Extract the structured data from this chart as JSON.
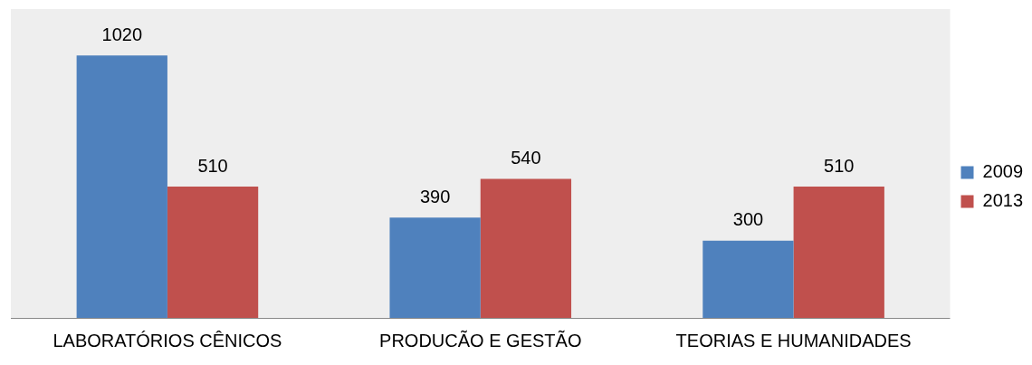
{
  "chart_data": {
    "type": "bar",
    "categories": [
      "LABORATÓRIOS CÊNICOS",
      "PRODUCÃO E GESTÃO",
      "TEORIAS E HUMANIDADES"
    ],
    "series": [
      {
        "name": "2009",
        "color": "#4f81bd",
        "values": [
          1020,
          390,
          300
        ]
      },
      {
        "name": "2013",
        "color": "#c0504d",
        "values": [
          510,
          540,
          510
        ]
      }
    ],
    "data_labels": true,
    "grid": false,
    "legend": "right"
  }
}
